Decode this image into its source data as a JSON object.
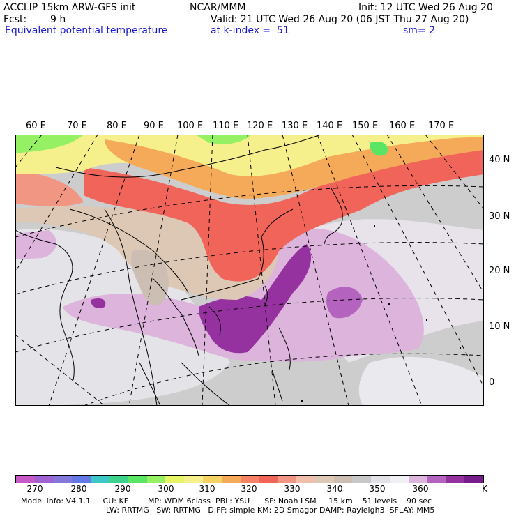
{
  "header": {
    "model_line": "ACCLIP 15km ARW-GFS init",
    "org": "NCAR/MMM",
    "init": "Init: 12 UTC Wed 26 Aug 20",
    "fcst_label": "Fcst:",
    "fcst_value": "9 h",
    "valid": "Valid: 21 UTC Wed 26 Aug 20 (06 JST Thu 27 Aug 20)",
    "field": "Equivalent potential temperature",
    "level": "at k-index =  51",
    "smoothing": "sm= 2"
  },
  "map": {
    "lon_labels": [
      "60 E",
      "70 E",
      "80 E",
      "90 E",
      "100 E",
      "110 E",
      "120 E",
      "130 E",
      "140 E",
      "150 E",
      "160 E",
      "170 E"
    ],
    "lat_labels": [
      "40 N",
      "30 N",
      "20 N",
      "10 N",
      "0"
    ]
  },
  "colorbar": {
    "unit": "K",
    "labels": [
      "270",
      "280",
      "290",
      "300",
      "310",
      "320",
      "330",
      "340",
      "350",
      "360"
    ],
    "colors": [
      "#c85ac8",
      "#a064d2",
      "#8278dc",
      "#6478e6",
      "#3cc8c8",
      "#3cd28c",
      "#5ae664",
      "#96f064",
      "#e6f564",
      "#f5f08c",
      "#f5d264",
      "#f5aa5a",
      "#f58264",
      "#f0645a",
      "#f09682",
      "#f0beaa",
      "#dcc8b4",
      "#cdbeb4",
      "#c8c8c8",
      "#e1e1e6",
      "#f0f0f4",
      "#dcb4dc",
      "#b464be",
      "#9632a0",
      "#781e8c"
    ]
  },
  "footer": {
    "line1": "Model Info: V4.1.1     CU: KF        MP: WDM 6class  PBL: YSU      SF: Noah LSM     15 km    51 levels    90 sec",
    "line2": "LW: RRTMG   SW: RRTMG   DIFF: simple KM: 2D Smagor DAMP: Rayleigh3  SFLAY: MM5"
  }
}
